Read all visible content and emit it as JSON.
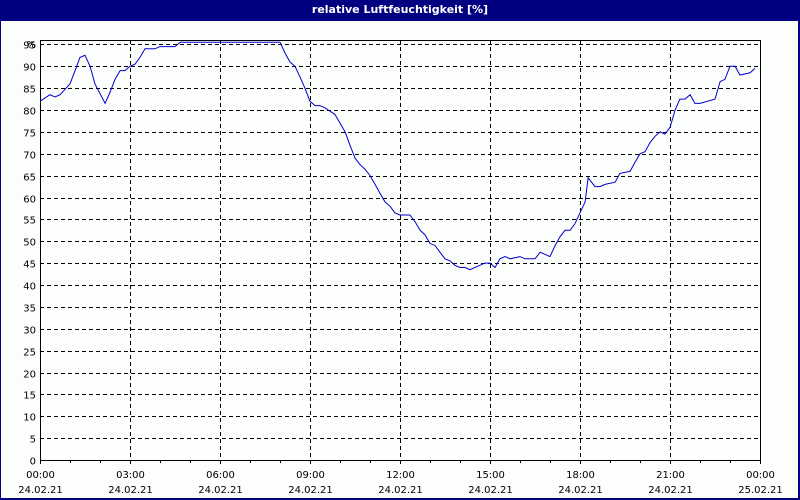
{
  "window": {
    "title": "relative Luftfeuchtigkeit [%]"
  },
  "chart_data": {
    "type": "line",
    "title": "relative Luftfeuchtigkeit [%]",
    "xlabel": "",
    "ylabel": "%",
    "ylim": [
      0,
      96
    ],
    "xlim_hours": [
      0,
      24
    ],
    "grid": true,
    "legend": null,
    "y_ticks": [
      0,
      5,
      10,
      15,
      20,
      25,
      30,
      35,
      40,
      45,
      50,
      55,
      60,
      65,
      70,
      75,
      80,
      85,
      90,
      95
    ],
    "y_unit_label": "%",
    "x_ticks": [
      {
        "hour": 0,
        "time": "00:00",
        "date": "24.02.21"
      },
      {
        "hour": 3,
        "time": "03:00",
        "date": "24.02.21"
      },
      {
        "hour": 6,
        "time": "06:00",
        "date": "24.02.21"
      },
      {
        "hour": 9,
        "time": "09:00",
        "date": "24.02.21"
      },
      {
        "hour": 12,
        "time": "12:00",
        "date": "24.02.21"
      },
      {
        "hour": 15,
        "time": "15:00",
        "date": "24.02.21"
      },
      {
        "hour": 18,
        "time": "18:00",
        "date": "24.02.21"
      },
      {
        "hour": 21,
        "time": "21:00",
        "date": "24.02.21"
      },
      {
        "hour": 24,
        "time": "00:00",
        "date": "25.02.21"
      }
    ],
    "series": [
      {
        "name": "relative Luftfeuchtigkeit",
        "color": "#0000cc",
        "x_hours": [
          0,
          0.33,
          0.5,
          0.67,
          1.0,
          1.17,
          1.33,
          1.5,
          1.67,
          1.83,
          2.17,
          2.33,
          2.5,
          2.67,
          2.83,
          3.0,
          3.17,
          3.33,
          3.5,
          3.83,
          4.0,
          4.5,
          4.67,
          8.0,
          8.17,
          8.33,
          8.5,
          8.67,
          8.83,
          9.0,
          9.17,
          9.33,
          9.5,
          9.83,
          10.0,
          10.17,
          10.33,
          10.5,
          10.67,
          10.83,
          11.0,
          11.17,
          11.33,
          11.5,
          11.67,
          11.83,
          12.0,
          12.17,
          12.33,
          12.5,
          12.67,
          12.83,
          13.0,
          13.17,
          13.33,
          13.5,
          13.67,
          13.83,
          14.0,
          14.17,
          14.33,
          14.83,
          15.0,
          15.17,
          15.33,
          15.5,
          15.67,
          16.0,
          16.17,
          16.5,
          16.67,
          17.0,
          17.17,
          17.33,
          17.5,
          17.67,
          17.83,
          18.17,
          18.27,
          18.5,
          18.67,
          18.83,
          19.17,
          19.33,
          19.67,
          19.83,
          20.0,
          20.17,
          20.33,
          20.5,
          20.67,
          20.83,
          21.0,
          21.17,
          21.33,
          21.5,
          21.67,
          21.83,
          22.0,
          22.5,
          22.67,
          22.83,
          23.0,
          23.17,
          23.33,
          23.67,
          23.83,
          24.0
        ],
        "values": [
          82,
          83.5,
          83,
          83.5,
          86,
          89,
          92,
          92.5,
          90,
          86,
          81.5,
          84,
          87,
          89,
          89,
          90,
          90.5,
          92,
          94,
          94,
          94.5,
          94.5,
          95.5,
          95.5,
          93,
          91,
          90,
          87.5,
          85,
          82,
          81,
          81,
          80.5,
          79,
          77,
          75,
          72,
          69,
          67.5,
          66.5,
          65,
          63,
          61,
          59,
          58,
          56.5,
          56,
          56,
          56,
          54.5,
          52.5,
          51.5,
          49.5,
          49,
          47.5,
          46,
          45.5,
          44.5,
          44,
          44,
          43.5,
          45,
          45,
          44,
          46,
          46.5,
          46,
          46.5,
          46,
          46,
          47.5,
          46.5,
          49,
          51,
          52.5,
          52.5,
          54,
          59,
          64.5,
          62.5,
          62.5,
          63,
          63.5,
          65.5,
          66,
          68,
          70,
          70.5,
          72.5,
          74,
          75,
          74.5,
          76,
          80,
          82.5,
          82.5,
          83.5,
          81.5,
          81.5,
          82.5,
          86.5,
          87,
          90,
          90,
          88,
          88.5,
          89.5
        ]
      }
    ]
  },
  "colors": {
    "frame": "#000080",
    "background": "#fcfefc",
    "line": "#0000cc",
    "grid": "#000000"
  }
}
